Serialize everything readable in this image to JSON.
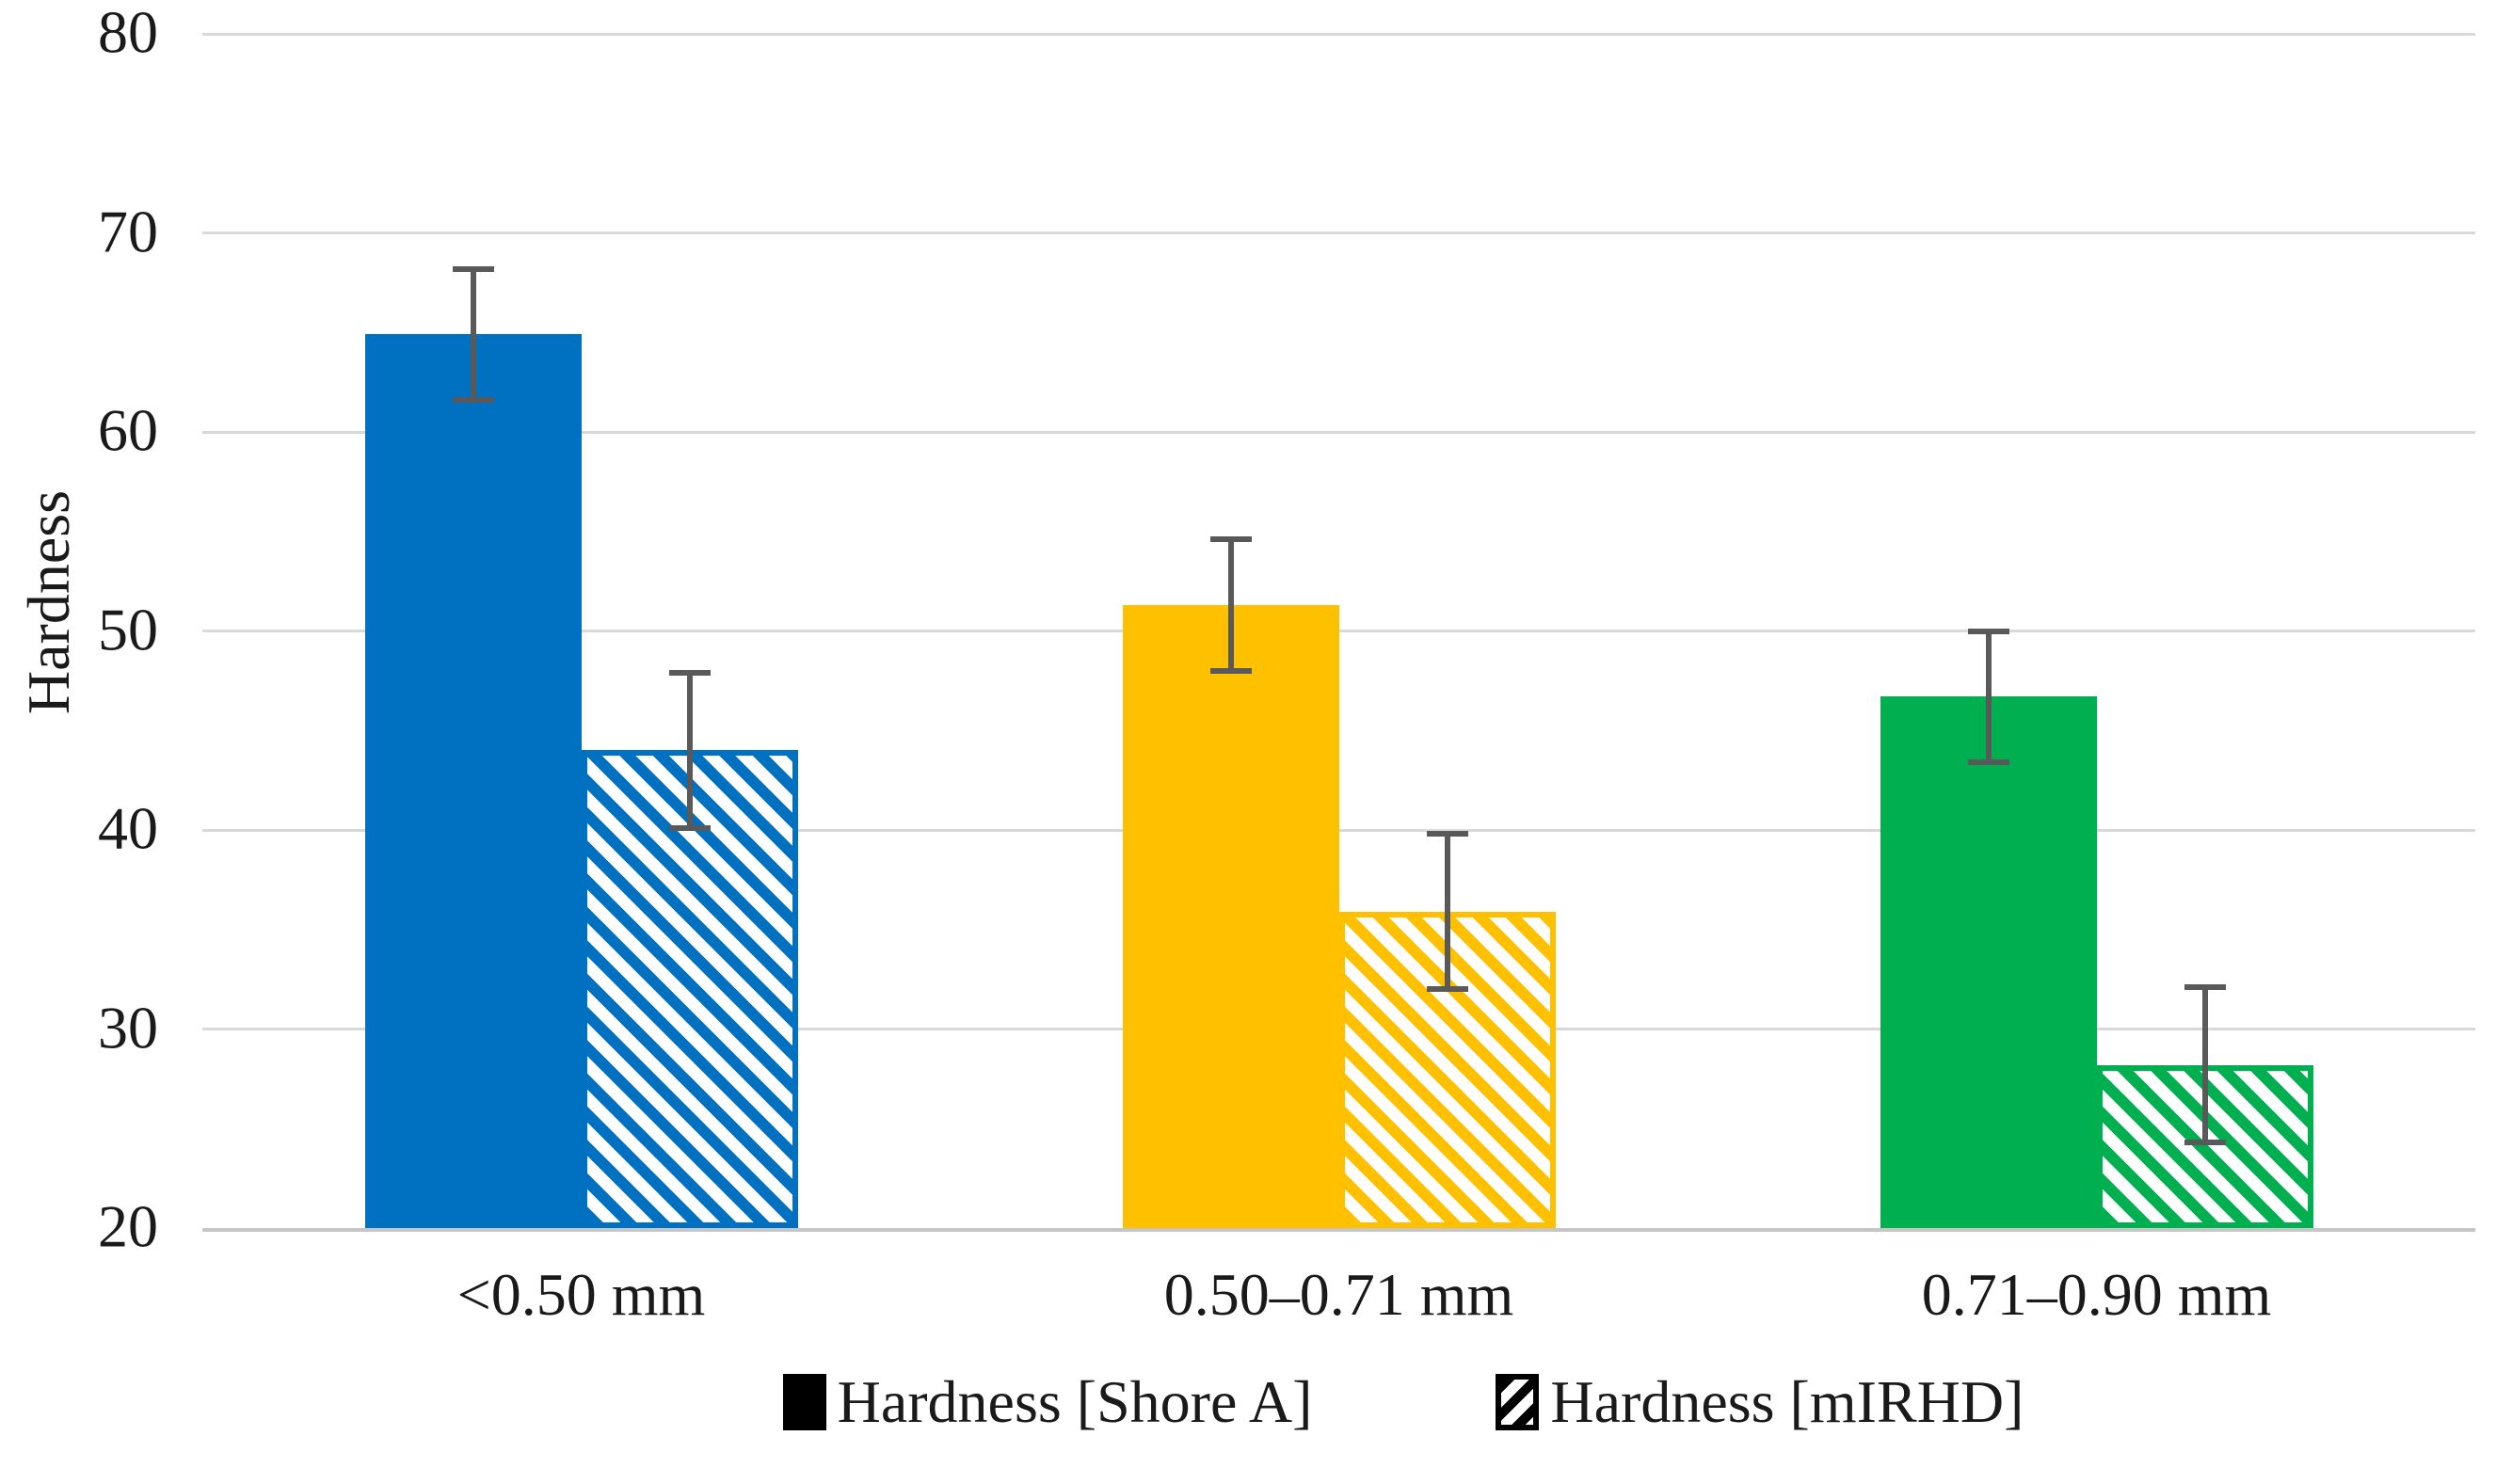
{
  "chart_data": {
    "type": "bar",
    "title": "",
    "ylabel": "Hardness",
    "xlabel": "",
    "ylim": [
      20,
      80
    ],
    "yticks": [
      20,
      30,
      40,
      50,
      60,
      70,
      80
    ],
    "grid": true,
    "legend_position": "bottom",
    "categories": [
      "<0.50 mm",
      "0.50–0.71 mm",
      "0.71–0.90 mm"
    ],
    "category_colors": [
      "#0070C0",
      "#FFC000",
      "#00B050"
    ],
    "series": [
      {
        "name": "Hardness [Shore A]",
        "style": "solid",
        "values": [
          64.9,
          51.3,
          46.7
        ],
        "error_bars": [
          3.3,
          3.3,
          3.3
        ]
      },
      {
        "name": "Hardness [mIRHD]",
        "style": "hatched",
        "values": [
          44.0,
          35.9,
          28.2
        ],
        "error_bars": [
          3.9,
          3.9,
          3.9
        ]
      }
    ],
    "style_colors": {
      "gridline": "#D9D9D9",
      "axis_line": "#C6C6C6",
      "error_bar": "#595959",
      "text": "#1A1A1A"
    }
  }
}
